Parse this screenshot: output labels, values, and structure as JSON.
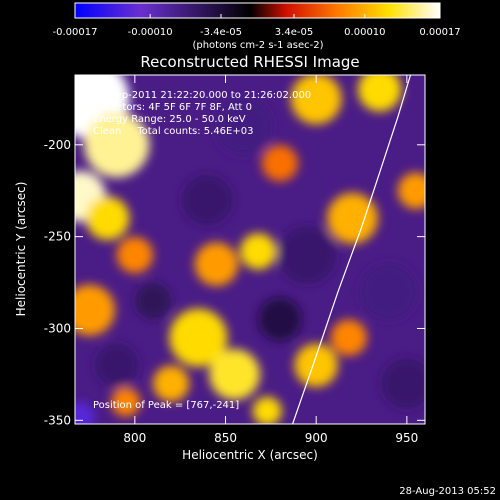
{
  "colorbar": {
    "ticks": [
      "-0.00017",
      "-0.00010",
      "-3.4e-05",
      "3.4e-05",
      "0.00010",
      "0.00017"
    ],
    "tick_values": [
      -0.00017,
      -0.0001,
      -3.4e-05,
      3.4e-05,
      0.0001,
      0.00017
    ],
    "range": [
      -0.00017,
      0.00017
    ],
    "units": "(photons cm-2 s-1 asec-2)",
    "colors": [
      "#0000ff",
      "#6a2fd0",
      "#000000",
      "#d01000",
      "#ff7a00",
      "#ffe000",
      "#ffffff"
    ]
  },
  "chart_data": {
    "type": "heatmap",
    "title": "Reconstructed RHESSI Image",
    "xlabel": "Heliocentric X (arcsec)",
    "ylabel": "Heliocentric Y (arcsec)",
    "xlim": [
      767,
      960
    ],
    "ylim": [
      -352,
      -162
    ],
    "xticks": [
      800,
      850,
      900,
      950
    ],
    "yticks": [
      -200,
      -250,
      -300,
      -350
    ],
    "annotations": [
      "16-Sep-2011 21:22:20.000 to 21:26:02.000",
      "Detectors: 4F 5F 6F 7F 8F, Att 0",
      "Energy Range: 25.0 - 50.0 keV",
      "Clean     Total counts: 5.46E+03"
    ],
    "peak_label": "Position of Peak = [767,-241]",
    "peak": [
      767,
      -241
    ],
    "limb_curve": [
      [
        887,
        -352
      ],
      [
        900,
        -315
      ],
      [
        912,
        -280
      ],
      [
        925,
        -245
      ],
      [
        935,
        -215
      ],
      [
        945,
        -185
      ],
      [
        952,
        -162
      ]
    ],
    "blobs": [
      {
        "x": 775,
        "y": -175,
        "r": 22,
        "v": 0.00017
      },
      {
        "x": 790,
        "y": -200,
        "r": 18,
        "v": 0.00015
      },
      {
        "x": 770,
        "y": -228,
        "r": 14,
        "v": 0.00016
      },
      {
        "x": 785,
        "y": -240,
        "r": 12,
        "v": 0.00012
      },
      {
        "x": 775,
        "y": -290,
        "r": 14,
        "v": 9e-05
      },
      {
        "x": 800,
        "y": -260,
        "r": 10,
        "v": 8e-05
      },
      {
        "x": 900,
        "y": -175,
        "r": 14,
        "v": 0.00011
      },
      {
        "x": 935,
        "y": -170,
        "r": 12,
        "v": 0.00012
      },
      {
        "x": 880,
        "y": -210,
        "r": 10,
        "v": 7e-05
      },
      {
        "x": 920,
        "y": -240,
        "r": 14,
        "v": 0.0001
      },
      {
        "x": 955,
        "y": -225,
        "r": 10,
        "v": 9e-05
      },
      {
        "x": 845,
        "y": -265,
        "r": 12,
        "v": 9e-05
      },
      {
        "x": 868,
        "y": -258,
        "r": 10,
        "v": 0.00012
      },
      {
        "x": 835,
        "y": -305,
        "r": 16,
        "v": 0.00012
      },
      {
        "x": 855,
        "y": -325,
        "r": 14,
        "v": 0.00013
      },
      {
        "x": 820,
        "y": -330,
        "r": 10,
        "v": 0.0001
      },
      {
        "x": 873,
        "y": -345,
        "r": 8,
        "v": 0.00012
      },
      {
        "x": 900,
        "y": -320,
        "r": 12,
        "v": 0.00011
      },
      {
        "x": 918,
        "y": -305,
        "r": 10,
        "v": 8e-05
      },
      {
        "x": 795,
        "y": -340,
        "r": 8,
        "v": 8e-05
      },
      {
        "x": 810,
        "y": -285,
        "r": 10,
        "v": -5e-05
      },
      {
        "x": 860,
        "y": -190,
        "r": 16,
        "v": -7e-05
      },
      {
        "x": 840,
        "y": -230,
        "r": 14,
        "v": -6e-05
      },
      {
        "x": 895,
        "y": -260,
        "r": 16,
        "v": -6e-05
      },
      {
        "x": 940,
        "y": -280,
        "r": 16,
        "v": -7e-05
      },
      {
        "x": 950,
        "y": -330,
        "r": 14,
        "v": -6e-05
      },
      {
        "x": 880,
        "y": -295,
        "r": 12,
        "v": -4e-05
      },
      {
        "x": 790,
        "y": -320,
        "r": 12,
        "v": -6e-05
      },
      {
        "x": 770,
        "y": -348,
        "r": 8,
        "v": -0.00012
      }
    ]
  },
  "footer": {
    "timestamp": "28-Aug-2013 05:52"
  }
}
